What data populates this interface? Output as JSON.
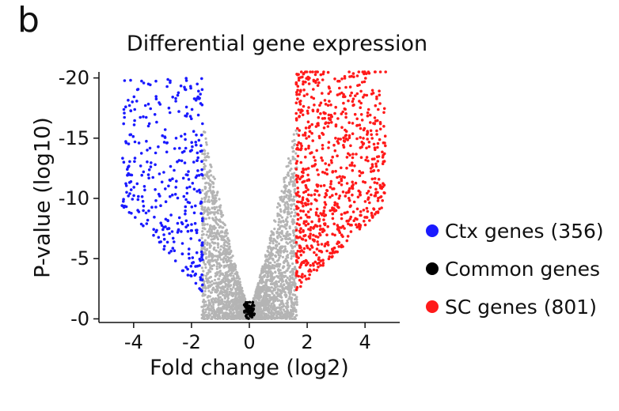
{
  "panel_label": "b",
  "chart_data": {
    "type": "scatter",
    "title": "Differential gene expression",
    "xlabel": "Fold change (log2)",
    "ylabel": "P-value (log10)",
    "xlim": [
      -5.2,
      5.2
    ],
    "ylim": [
      0.3,
      -20.5
    ],
    "x_ticks": [
      -4,
      -2,
      0,
      2,
      4
    ],
    "x_tick_labels": [
      "-4",
      "-2",
      "0",
      "2",
      "4"
    ],
    "y_ticks": [
      -20,
      -15,
      -10,
      -5,
      0
    ],
    "y_tick_labels": [
      "-20",
      "-15",
      "-10",
      "-5",
      "-0"
    ],
    "grid": false,
    "legend_position": "right",
    "series": [
      {
        "name": "Ctx genes (356)",
        "color": "#1a1aff",
        "region": "fold change < -1.6",
        "count": 356
      },
      {
        "name": "Common genes",
        "color": "#000000",
        "region": "fold change near 0, low significance"
      },
      {
        "name": "SC genes (801)",
        "color": "#ff1a1a",
        "region": "fold change > 1.6",
        "count": 801
      },
      {
        "name": "",
        "color": "#b4b4b4",
        "region": "non-significant"
      }
    ]
  },
  "legend": {
    "items": [
      {
        "label": "Ctx genes (356)",
        "color": "#1a1aff"
      },
      {
        "label": "Common genes",
        "color": "#000000"
      },
      {
        "label": "SC genes (801)",
        "color": "#ff1a1a"
      }
    ]
  }
}
